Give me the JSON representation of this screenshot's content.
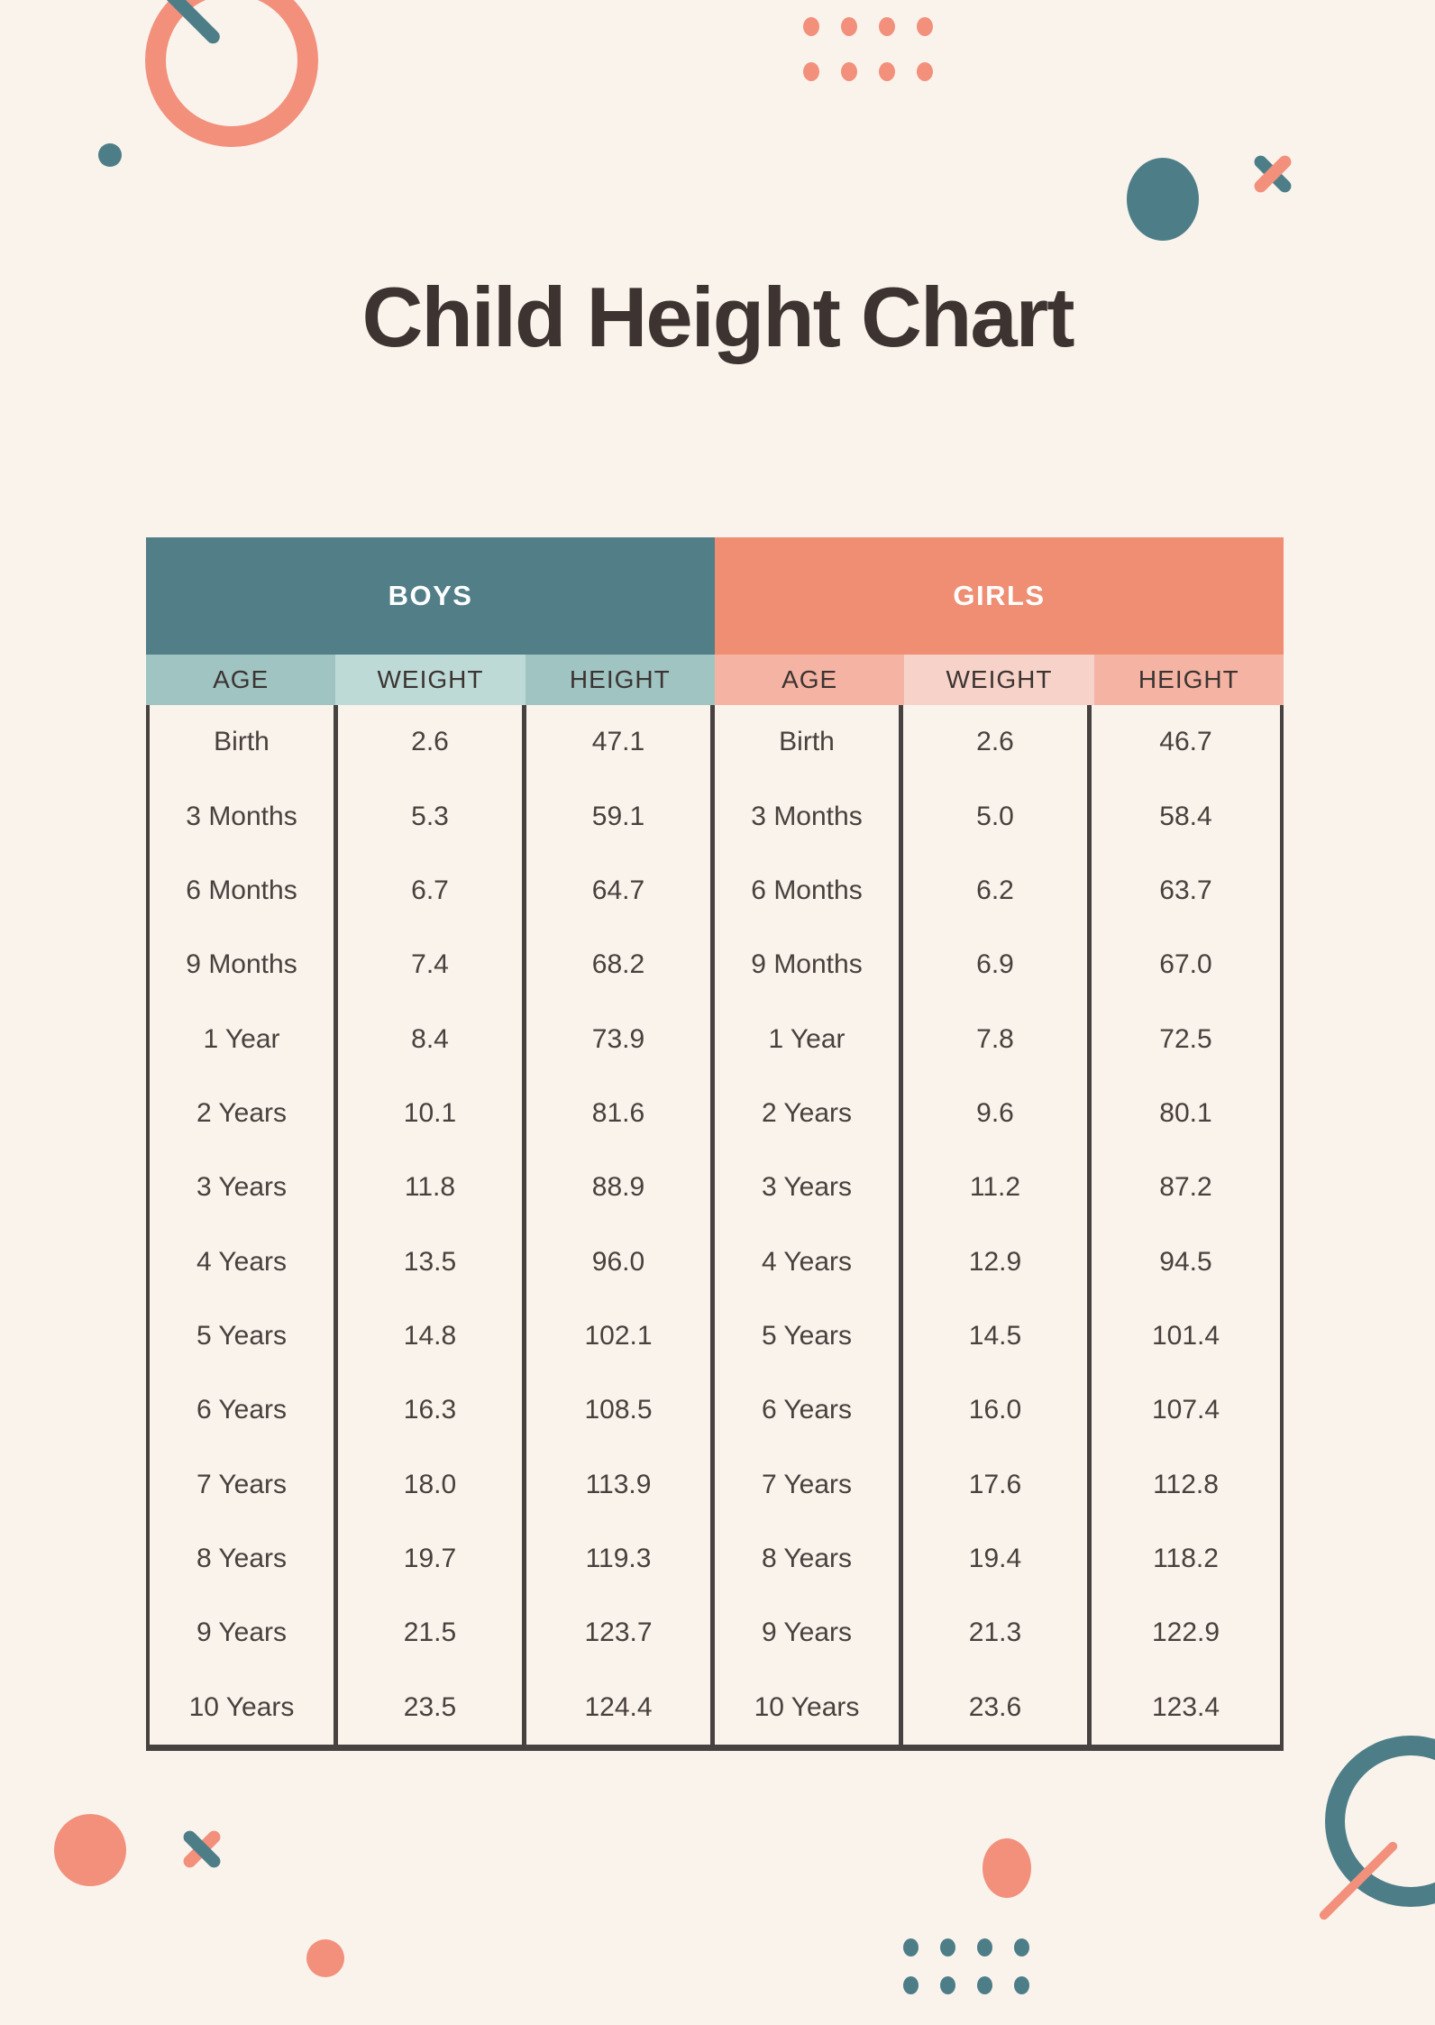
{
  "page": {
    "title": "Child Height Chart",
    "background_color": "#f9f3ec"
  },
  "colors": {
    "teal": "#517e87",
    "teal_light": "#a0c4c1",
    "teal_lighter": "#bedad7",
    "coral": "#ef8e73",
    "coral_light": "#f5b4a3",
    "coral_lighter": "#f7d2c8",
    "border_dark": "#474240",
    "text_dark": "#49403d"
  },
  "table": {
    "boys_label": "BOYS",
    "girls_label": "GIRLS",
    "columns": [
      "AGE",
      "WEIGHT",
      "HEIGHT"
    ],
    "rows": [
      {
        "boys": {
          "age": "Birth",
          "weight": "2.6",
          "height": "47.1"
        },
        "girls": {
          "age": "Birth",
          "weight": "2.6",
          "height": "46.7"
        }
      },
      {
        "boys": {
          "age": "3 Months",
          "weight": "5.3",
          "height": "59.1"
        },
        "girls": {
          "age": "3 Months",
          "weight": "5.0",
          "height": "58.4"
        }
      },
      {
        "boys": {
          "age": "6 Months",
          "weight": "6.7",
          "height": "64.7"
        },
        "girls": {
          "age": "6 Months",
          "weight": "6.2",
          "height": "63.7"
        }
      },
      {
        "boys": {
          "age": "9 Months",
          "weight": "7.4",
          "height": "68.2"
        },
        "girls": {
          "age": "9 Months",
          "weight": "6.9",
          "height": "67.0"
        }
      },
      {
        "boys": {
          "age": "1 Year",
          "weight": "8.4",
          "height": "73.9"
        },
        "girls": {
          "age": "1 Year",
          "weight": "7.8",
          "height": "72.5"
        }
      },
      {
        "boys": {
          "age": "2 Years",
          "weight": "10.1",
          "height": "81.6"
        },
        "girls": {
          "age": "2 Years",
          "weight": "9.6",
          "height": "80.1"
        }
      },
      {
        "boys": {
          "age": "3 Years",
          "weight": "11.8",
          "height": "88.9"
        },
        "girls": {
          "age": "3 Years",
          "weight": "11.2",
          "height": "87.2"
        }
      },
      {
        "boys": {
          "age": "4 Years",
          "weight": "13.5",
          "height": "96.0"
        },
        "girls": {
          "age": "4 Years",
          "weight": "12.9",
          "height": "94.5"
        }
      },
      {
        "boys": {
          "age": "5 Years",
          "weight": "14.8",
          "height": "102.1"
        },
        "girls": {
          "age": "5 Years",
          "weight": "14.5",
          "height": "101.4"
        }
      },
      {
        "boys": {
          "age": "6 Years",
          "weight": "16.3",
          "height": "108.5"
        },
        "girls": {
          "age": "6 Years",
          "weight": "16.0",
          "height": "107.4"
        }
      },
      {
        "boys": {
          "age": "7 Years",
          "weight": "18.0",
          "height": "113.9"
        },
        "girls": {
          "age": "7 Years",
          "weight": "17.6",
          "height": "112.8"
        }
      },
      {
        "boys": {
          "age": "8 Years",
          "weight": "19.7",
          "height": "119.3"
        },
        "girls": {
          "age": "8 Years",
          "weight": "19.4",
          "height": "118.2"
        }
      },
      {
        "boys": {
          "age": "9 Years",
          "weight": "21.5",
          "height": "123.7"
        },
        "girls": {
          "age": "9 Years",
          "weight": "21.3",
          "height": "122.9"
        }
      },
      {
        "boys": {
          "age": "10 Years",
          "weight": "23.5",
          "height": "124.4"
        },
        "girls": {
          "age": "10 Years",
          "weight": "23.6",
          "height": "123.4"
        }
      }
    ]
  }
}
